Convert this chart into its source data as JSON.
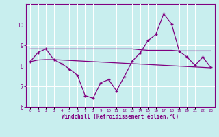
{
  "xlabel": "Windchill (Refroidissement éolien,°C)",
  "bg_color": "#c8eeee",
  "grid_color": "#ffffff",
  "line_color": "#800080",
  "x_values": [
    0,
    1,
    2,
    3,
    4,
    5,
    6,
    7,
    8,
    9,
    10,
    11,
    12,
    13,
    14,
    15,
    16,
    17,
    18,
    19,
    20,
    21,
    22,
    23
  ],
  "windchill": [
    8.2,
    8.65,
    8.82,
    8.3,
    8.1,
    7.85,
    7.55,
    6.55,
    6.42,
    7.18,
    7.32,
    6.78,
    7.48,
    8.22,
    8.62,
    9.22,
    9.52,
    10.52,
    10.05,
    8.7,
    8.42,
    8.02,
    8.42,
    7.92
  ],
  "smooth_upper": [
    8.82,
    8.82,
    8.82,
    8.82,
    8.82,
    8.82,
    8.82,
    8.82,
    8.82,
    8.82,
    8.82,
    8.82,
    8.82,
    8.82,
    8.78,
    8.75,
    8.75,
    8.75,
    8.75,
    8.72,
    8.72,
    8.72,
    8.72,
    8.72
  ],
  "smooth_lower": [
    8.2,
    8.28,
    8.3,
    8.3,
    8.28,
    8.26,
    8.24,
    8.22,
    8.2,
    8.18,
    8.16,
    8.14,
    8.12,
    8.1,
    8.08,
    8.06,
    8.04,
    8.02,
    8.0,
    7.98,
    7.96,
    7.94,
    7.92,
    7.9
  ],
  "ylim": [
    6,
    11
  ],
  "yticks": [
    6,
    7,
    8,
    9,
    10
  ],
  "xlim": [
    -0.5,
    23.5
  ],
  "figsize": [
    3.2,
    2.0
  ],
  "dpi": 100
}
